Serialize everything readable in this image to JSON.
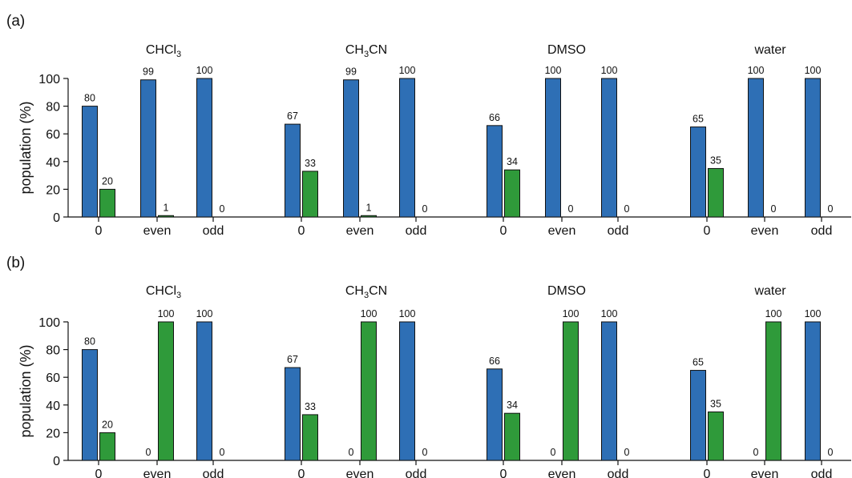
{
  "colors": {
    "series1": "#2e6fb5",
    "series2": "#2f9a3a",
    "stroke": "#111111"
  },
  "chart_data": [
    {
      "type": "bar",
      "panel_label": "(a)",
      "ylabel": "population (%)",
      "ylim": [
        0,
        100
      ],
      "yticks": [
        0,
        20,
        40,
        60,
        80,
        100
      ],
      "groups": [
        {
          "title": "CHCl",
          "title_parts": [
            [
              "CHCl",
              ""
            ],
            [
              "3",
              "sub"
            ]
          ],
          "categories": [
            "0",
            "even",
            "odd"
          ],
          "series": [
            {
              "values": [
                80,
                99,
                100
              ]
            },
            {
              "values": [
                20,
                1,
                0
              ]
            }
          ]
        },
        {
          "title": "CH3CN",
          "title_parts": [
            [
              "CH",
              ""
            ],
            [
              "3",
              "sub"
            ],
            [
              "CN",
              ""
            ]
          ],
          "categories": [
            "0",
            "even",
            "odd"
          ],
          "series": [
            {
              "values": [
                67,
                99,
                100
              ]
            },
            {
              "values": [
                33,
                1,
                0
              ]
            }
          ]
        },
        {
          "title": "DMSO",
          "title_parts": [
            [
              "DMSO",
              ""
            ]
          ],
          "categories": [
            "0",
            "even",
            "odd"
          ],
          "series": [
            {
              "values": [
                66,
                100,
                100
              ]
            },
            {
              "values": [
                34,
                0,
                0
              ]
            }
          ]
        },
        {
          "title": "water",
          "title_parts": [
            [
              "water",
              ""
            ]
          ],
          "categories": [
            "0",
            "even",
            "odd"
          ],
          "series": [
            {
              "values": [
                65,
                100,
                100
              ]
            },
            {
              "values": [
                35,
                0,
                0
              ]
            }
          ]
        }
      ]
    },
    {
      "type": "bar",
      "panel_label": "(b)",
      "ylabel": "population (%)",
      "ylim": [
        0,
        100
      ],
      "yticks": [
        0,
        20,
        40,
        60,
        80,
        100
      ],
      "groups": [
        {
          "title": "CHCl",
          "title_parts": [
            [
              "CHCl",
              ""
            ],
            [
              "3",
              "sub"
            ]
          ],
          "categories": [
            "0",
            "even",
            "odd"
          ],
          "series": [
            {
              "values": [
                80,
                0,
                100
              ]
            },
            {
              "values": [
                20,
                100,
                0
              ]
            }
          ]
        },
        {
          "title": "CH3CN",
          "title_parts": [
            [
              "CH",
              ""
            ],
            [
              "3",
              "sub"
            ],
            [
              "CN",
              ""
            ]
          ],
          "categories": [
            "0",
            "even",
            "odd"
          ],
          "series": [
            {
              "values": [
                67,
                0,
                100
              ]
            },
            {
              "values": [
                33,
                100,
                0
              ]
            }
          ]
        },
        {
          "title": "DMSO",
          "title_parts": [
            [
              "DMSO",
              ""
            ]
          ],
          "categories": [
            "0",
            "even",
            "odd"
          ],
          "series": [
            {
              "values": [
                66,
                0,
                100
              ]
            },
            {
              "values": [
                34,
                100,
                0
              ]
            }
          ]
        },
        {
          "title": "water",
          "title_parts": [
            [
              "water",
              ""
            ]
          ],
          "categories": [
            "0",
            "even",
            "odd"
          ],
          "series": [
            {
              "values": [
                65,
                0,
                100
              ]
            },
            {
              "values": [
                35,
                100,
                0
              ]
            }
          ]
        }
      ]
    }
  ]
}
